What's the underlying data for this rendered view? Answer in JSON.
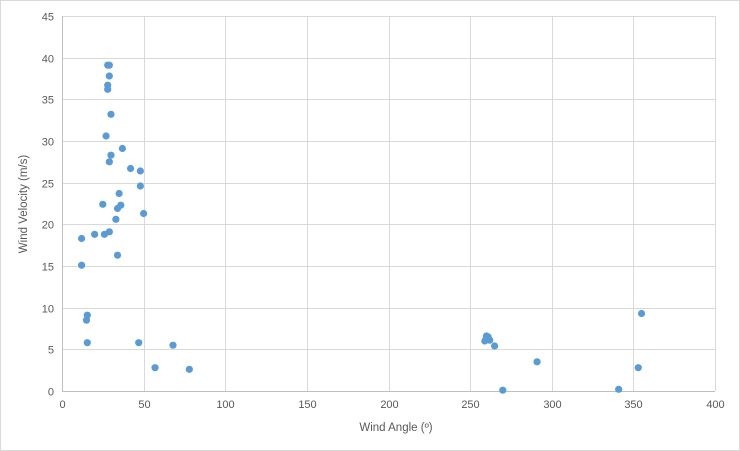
{
  "chart_data": {
    "type": "scatter",
    "title": "",
    "xlabel": "Wind Angle (º)",
    "ylabel": "Wind Velocity (m/s)",
    "xlim": [
      0,
      400
    ],
    "ylim": [
      0,
      45
    ],
    "x_ticks": [
      0,
      50,
      100,
      150,
      200,
      250,
      300,
      350,
      400
    ],
    "y_ticks": [
      0,
      5,
      10,
      15,
      20,
      25,
      30,
      35,
      40,
      45
    ],
    "grid": true,
    "legend": "none",
    "marker_color": "#5B9BD5",
    "series": [
      {
        "points": [
          [
            12,
            18.3
          ],
          [
            12,
            15.1
          ],
          [
            15,
            8.5
          ],
          [
            15.5,
            9.1
          ],
          [
            15.5,
            5.8
          ],
          [
            20,
            18.8
          ],
          [
            25,
            22.4
          ],
          [
            26,
            18.8
          ],
          [
            27,
            30.6
          ],
          [
            28,
            39.1
          ],
          [
            28,
            36.2
          ],
          [
            28,
            36.7
          ],
          [
            29,
            37.8
          ],
          [
            29,
            39.1
          ],
          [
            29,
            27.5
          ],
          [
            29,
            19.1
          ],
          [
            30,
            28.3
          ],
          [
            30,
            33.2
          ],
          [
            33,
            20.6
          ],
          [
            34,
            21.9
          ],
          [
            34,
            16.3
          ],
          [
            35,
            23.7
          ],
          [
            36,
            22.3
          ],
          [
            37,
            29.1
          ],
          [
            42,
            26.7
          ],
          [
            47,
            5.8
          ],
          [
            48,
            24.6
          ],
          [
            48,
            26.4
          ],
          [
            50,
            21.3
          ],
          [
            57,
            2.8
          ],
          [
            68,
            5.5
          ],
          [
            78,
            2.6
          ],
          [
            259,
            6.0
          ],
          [
            260,
            6.4
          ],
          [
            260,
            6.6
          ],
          [
            261,
            6.5
          ],
          [
            262,
            6.1
          ],
          [
            265,
            5.4
          ],
          [
            270,
            0.1
          ],
          [
            291,
            3.5
          ],
          [
            341,
            0.2
          ],
          [
            353,
            2.8
          ],
          [
            355,
            9.3
          ]
        ]
      }
    ]
  }
}
